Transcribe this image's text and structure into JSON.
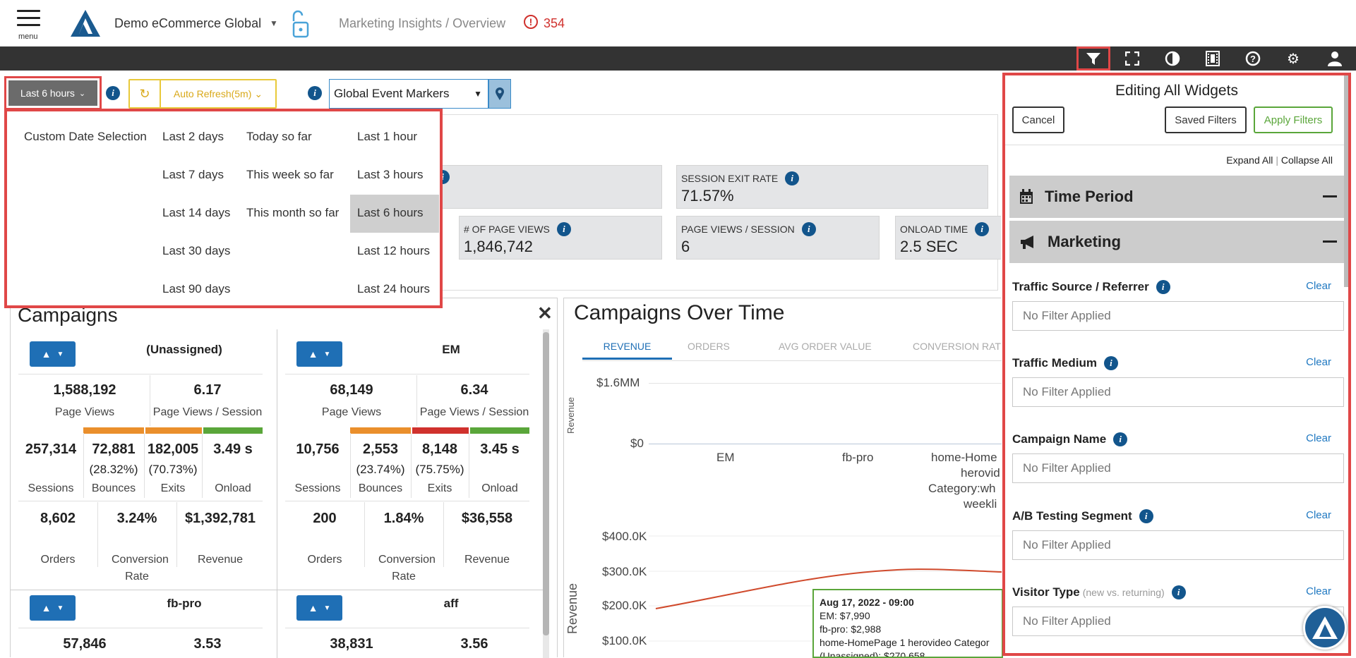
{
  "header": {
    "menu_label": "menu",
    "org_name": "Demo eCommerce Global",
    "breadcrumb": "Marketing Insights / Overview",
    "alert_count": "354"
  },
  "toolbar": {
    "icons": [
      "filter-icon",
      "fullscreen-icon",
      "contrast-icon",
      "film-icon",
      "help-icon",
      "settings-icon",
      "user-icon"
    ]
  },
  "controls": {
    "time_range": "Last 6 hours",
    "auto_refresh": "Auto Refresh(5m)",
    "event_markers": "Global Event Markers"
  },
  "dropdown": {
    "col1": [
      "Custom Date Selection"
    ],
    "col2": [
      "Last 2 days",
      "Last 7 days",
      "Last 14 days",
      "Last 30 days",
      "Last 90 days"
    ],
    "col3": [
      "Today so far",
      "This week so far",
      "This month so far"
    ],
    "col4": [
      "Last 1 hour",
      "Last 3 hours",
      "Last 6 hours",
      "Last 12 hours",
      "Last 24 hours"
    ]
  },
  "metrics": {
    "exit_rate": {
      "title": "SESSION EXIT RATE",
      "value": "71.57%"
    },
    "page_views": {
      "title": "# OF PAGE VIEWS",
      "value": "1,846,742"
    },
    "pv_session": {
      "title": "PAGE VIEWS / SESSION",
      "value": "6"
    },
    "onload": {
      "title": "ONLOAD TIME",
      "value": "2.5 SEC"
    }
  },
  "campaigns": {
    "title": "Campaigns",
    "items": [
      {
        "name": "(Unassigned)",
        "page_views": "1,588,192",
        "pv_session": "6.17",
        "sessions": "257,314",
        "bounces": "72,881",
        "bounce_pct": "(28.32%)",
        "exits": "182,005",
        "exit_pct": "(70.73%)",
        "onload": "3.49 s",
        "orders": "8,602",
        "conv": "3.24%",
        "revenue": "$1,392,781"
      },
      {
        "name": "EM",
        "page_views": "68,149",
        "pv_session": "6.34",
        "sessions": "10,756",
        "bounces": "2,553",
        "bounce_pct": "(23.74%)",
        "exits": "8,148",
        "exit_pct": "(75.75%)",
        "onload": "3.45 s",
        "orders": "200",
        "conv": "1.84%",
        "revenue": "$36,558"
      },
      {
        "name": "fb-pro",
        "page_views": "57,846",
        "pv_session": "3.53"
      },
      {
        "name": "aff",
        "page_views": "38,831",
        "pv_session": "3.56"
      }
    ],
    "labels": {
      "page_views": "Page Views",
      "pv_session": "Page Views / Session",
      "sessions": "Sessions",
      "bounces": "Bounces",
      "exits": "Exits",
      "onload": "Onload",
      "orders": "Orders",
      "conv": "Conversion Rate",
      "revenue": "Revenue"
    }
  },
  "over_time": {
    "title": "Campaigns Over Time",
    "tabs": [
      "REVENUE",
      "ORDERS",
      "AVG ORDER VALUE",
      "CONVERSION RAT"
    ],
    "ylabel": "Revenue",
    "bar_ticks": [
      "$1.6MM",
      "$0"
    ],
    "bar_categories": [
      "EM",
      "fb-pro",
      "home-Home",
      "herovid",
      "Category:wh",
      "weekli"
    ],
    "line_ticks": [
      "$400.0K",
      "$300.0K",
      "$200.0K",
      "$100.0K"
    ],
    "tooltip": {
      "title": "Aug 17, 2022 - 09:00",
      "lines": [
        "EM: $7,990",
        "fb-pro: $2,988",
        "home-HomePage 1 herovideo Categor",
        "(Unassigned): $270,658"
      ]
    }
  },
  "filters": {
    "title": "Editing All Widgets",
    "cancel": "Cancel",
    "saved": "Saved Filters",
    "apply": "Apply Filters",
    "expand": "Expand All",
    "collapse": "Collapse All",
    "sections": [
      "Time Period",
      "Marketing"
    ],
    "fields": [
      {
        "label": "Traffic Source / Referrer",
        "sub": ""
      },
      {
        "label": "Traffic Medium",
        "sub": ""
      },
      {
        "label": "Campaign Name",
        "sub": ""
      },
      {
        "label": "A/B Testing Segment",
        "sub": ""
      },
      {
        "label": "Visitor Type",
        "sub": "(new vs. returning)"
      }
    ],
    "clear": "Clear",
    "placeholder": "No Filter Applied"
  },
  "colors": {
    "accent": "#12558c",
    "orange": "#ea8f2c",
    "red": "#d0312d",
    "green": "#5aa63a",
    "line": "#d04a2c"
  }
}
